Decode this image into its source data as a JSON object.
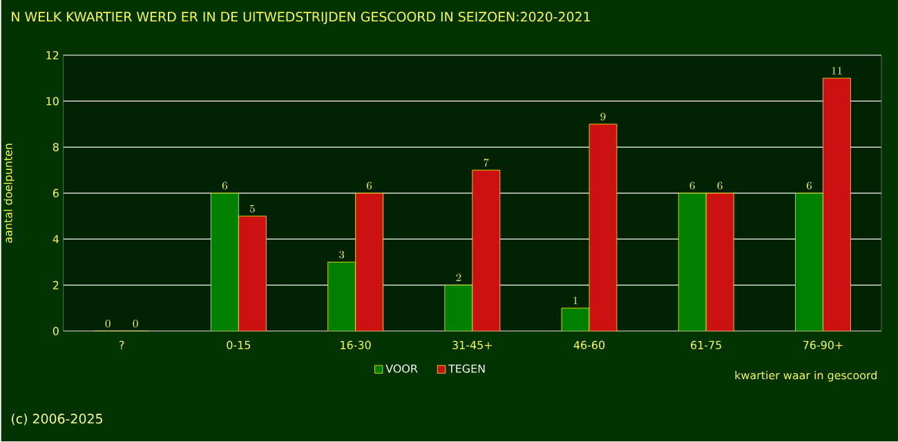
{
  "chart_data": {
    "type": "bar",
    "title": "N WELK KWARTIER WERD ER IN DE UITWEDSTRIJDEN GESCOORD IN SEIZOEN:2020-2021",
    "xlabel": "kwartier waar in gescoord",
    "ylabel": "aantal doelpunten",
    "categories": [
      "?",
      "0-15",
      "16-30",
      "31-45+",
      "46-60",
      "61-75",
      "76-90+"
    ],
    "series": [
      {
        "name": "VOOR",
        "color": "#008000",
        "values": [
          0,
          6,
          3,
          2,
          1,
          6,
          6
        ]
      },
      {
        "name": "TEGEN",
        "color": "#cc1111",
        "values": [
          0,
          5,
          6,
          7,
          9,
          6,
          11
        ]
      }
    ],
    "ylim": [
      0,
      12
    ],
    "yticks": [
      0,
      2,
      4,
      6,
      8,
      10,
      12
    ],
    "grid": "y",
    "legend": "bottom",
    "data_labels": true,
    "annotations": [
      "(c) 2006-2025"
    ]
  }
}
